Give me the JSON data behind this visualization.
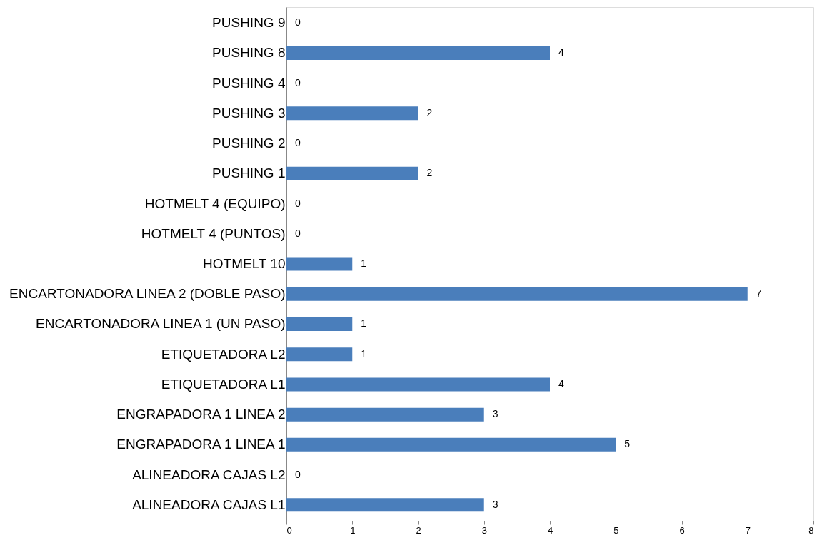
{
  "chart_data": {
    "type": "bar",
    "orientation": "horizontal",
    "categories": [
      "PUSHING 9",
      "PUSHING 8",
      "PUSHING 4",
      "PUSHING 3",
      "PUSHING 2",
      "PUSHING 1",
      "HOTMELT 4 (EQUIPO)",
      "HOTMELT 4 (PUNTOS)",
      "HOTMELT 10",
      "ENCARTONADORA LINEA 2 (DOBLE PASO)",
      "ENCARTONADORA LINEA 1 (UN PASO)",
      "ETIQUETADORA L2",
      "ETIQUETADORA L1",
      "ENGRAPADORA 1 LINEA 2",
      "ENGRAPADORA 1 LINEA 1",
      "ALINEADORA CAJAS L2",
      "ALINEADORA CAJAS L1"
    ],
    "values": [
      0,
      4,
      0,
      2,
      0,
      2,
      0,
      0,
      1,
      7,
      1,
      1,
      4,
      3,
      5,
      0,
      3
    ],
    "color": "#4a7ebb",
    "xlim": [
      0,
      8
    ],
    "xticks": [
      0,
      1,
      2,
      3,
      4,
      5,
      6,
      7,
      8
    ],
    "data_labels": true,
    "grid": false
  }
}
